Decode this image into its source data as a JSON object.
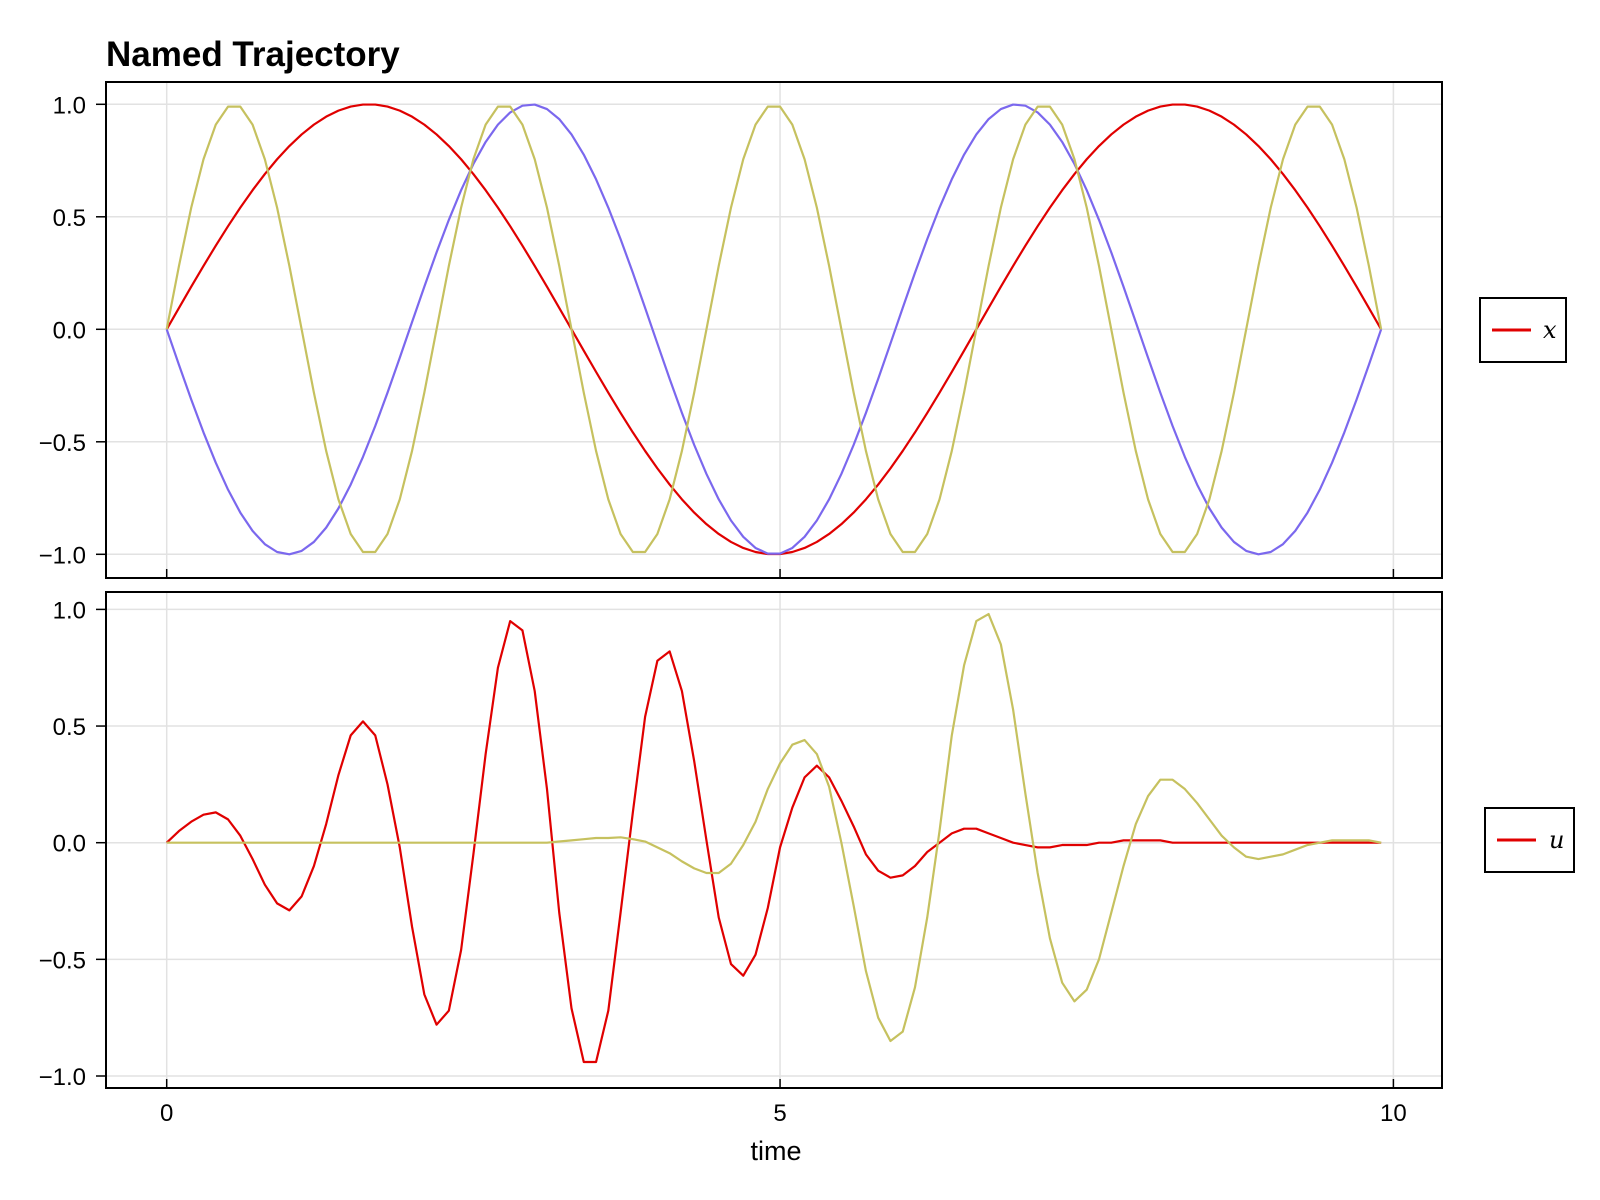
{
  "title": "Named Trajectory",
  "chart_data": [
    {
      "type": "line",
      "panel": "top",
      "title": "Named Trajectory",
      "xlabel": "",
      "ylabel": "",
      "xlim": [
        -0.5,
        10.4
      ],
      "ylim": [
        -1.1,
        1.1
      ],
      "grid": true,
      "x": {
        "start": 0,
        "step": 0.1,
        "count": 100
      },
      "xticks": [
        0,
        5,
        10
      ],
      "xtick_labels": [
        "",
        "",
        ""
      ],
      "yticks": [
        -1.0,
        -0.5,
        0.0,
        0.5,
        1.0
      ],
      "ytick_labels": [
        "−1.0",
        "−0.5",
        "0.0",
        "0.5",
        "1.0"
      ],
      "legend": {
        "placement": "right",
        "entries": [
          {
            "label": "x",
            "color": "#e00000"
          }
        ]
      },
      "series": [
        {
          "name": "x",
          "color": "#e00000",
          "generator": {
            "type": "sine",
            "amplitude": 1,
            "cycles_over_span": 1.5,
            "span": 9.9
          }
        },
        {
          "name": "",
          "color": "#7b68ee",
          "generator": {
            "type": "sine",
            "amplitude": -1,
            "cycles_over_span": 2.5,
            "span": 9.9
          }
        },
        {
          "name": "",
          "color": "#c6c15f",
          "generator": {
            "type": "sine",
            "amplitude": 1,
            "cycles_over_span": 4.5,
            "span": 9.9
          }
        }
      ]
    },
    {
      "type": "line",
      "panel": "bottom",
      "xlabel": "time",
      "ylabel": "",
      "xlim": [
        -0.5,
        10.4
      ],
      "ylim": [
        -1.05,
        1.05
      ],
      "grid": true,
      "x": {
        "start": 0,
        "step": 0.1,
        "count": 100
      },
      "xticks": [
        0,
        5,
        10
      ],
      "xtick_labels": [
        "0",
        "5",
        "10"
      ],
      "yticks": [
        -1.0,
        -0.5,
        0.0,
        0.5,
        1.0
      ],
      "ytick_labels": [
        "−1.0",
        "−0.5",
        "0.0",
        "0.5",
        "1.0"
      ],
      "legend": {
        "placement": "right",
        "entries": [
          {
            "label": "u",
            "color": "#e00000"
          }
        ]
      },
      "series": [
        {
          "name": "u",
          "color": "#e00000",
          "values": [
            0,
            0.05,
            0.09,
            0.12,
            0.13,
            0.1,
            0.03,
            -0.07,
            -0.18,
            -0.26,
            -0.29,
            -0.23,
            -0.1,
            0.08,
            0.29,
            0.46,
            0.52,
            0.46,
            0.25,
            -0.02,
            -0.36,
            -0.65,
            -0.78,
            -0.72,
            -0.46,
            -0.05,
            0.38,
            0.75,
            0.95,
            0.91,
            0.65,
            0.23,
            -0.3,
            -0.71,
            -0.94,
            -0.94,
            -0.72,
            -0.3,
            0.13,
            0.54,
            0.78,
            0.82,
            0.65,
            0.35,
            0.01,
            -0.32,
            -0.52,
            -0.57,
            -0.48,
            -0.28,
            -0.02,
            0.15,
            0.28,
            0.33,
            0.28,
            0.18,
            0.07,
            -0.05,
            -0.12,
            -0.15,
            -0.14,
            -0.1,
            -0.04,
            0.0,
            0.04,
            0.06,
            0.06,
            0.04,
            0.02,
            0.0,
            -0.01,
            -0.02,
            -0.02,
            -0.01,
            -0.01,
            -0.01,
            0,
            0,
            0.01,
            0.01,
            0.01,
            0.01,
            0,
            0,
            0,
            0,
            0,
            0,
            0,
            0,
            0,
            0,
            0,
            0,
            0,
            0,
            0,
            0,
            0,
            0
          ]
        },
        {
          "name": "",
          "color": "#c6c15f",
          "values": [
            0,
            0,
            0,
            0,
            0,
            0,
            0,
            0,
            0,
            0,
            0,
            0,
            0,
            0,
            0,
            0,
            0,
            0,
            0,
            0,
            0,
            0,
            0,
            0,
            0,
            0,
            0,
            0,
            0,
            0,
            0,
            0,
            0.005,
            0.01,
            0.015,
            0.02,
            0.02,
            0.023,
            0.015,
            0.005,
            -0.02,
            -0.045,
            -0.08,
            -0.11,
            -0.13,
            -0.13,
            -0.09,
            -0.01,
            0.09,
            0.23,
            0.34,
            0.42,
            0.44,
            0.38,
            0.24,
            0.0,
            -0.27,
            -0.55,
            -0.75,
            -0.85,
            -0.81,
            -0.62,
            -0.32,
            0.05,
            0.46,
            0.76,
            0.95,
            0.98,
            0.85,
            0.57,
            0.21,
            -0.13,
            -0.41,
            -0.6,
            -0.68,
            -0.63,
            -0.5,
            -0.3,
            -0.1,
            0.08,
            0.2,
            0.27,
            0.27,
            0.23,
            0.17,
            0.1,
            0.03,
            -0.02,
            -0.06,
            -0.07,
            -0.06,
            -0.05,
            -0.03,
            -0.01,
            0.0,
            0.01,
            0.01,
            0.01,
            0.01,
            0.0
          ]
        }
      ]
    }
  ]
}
